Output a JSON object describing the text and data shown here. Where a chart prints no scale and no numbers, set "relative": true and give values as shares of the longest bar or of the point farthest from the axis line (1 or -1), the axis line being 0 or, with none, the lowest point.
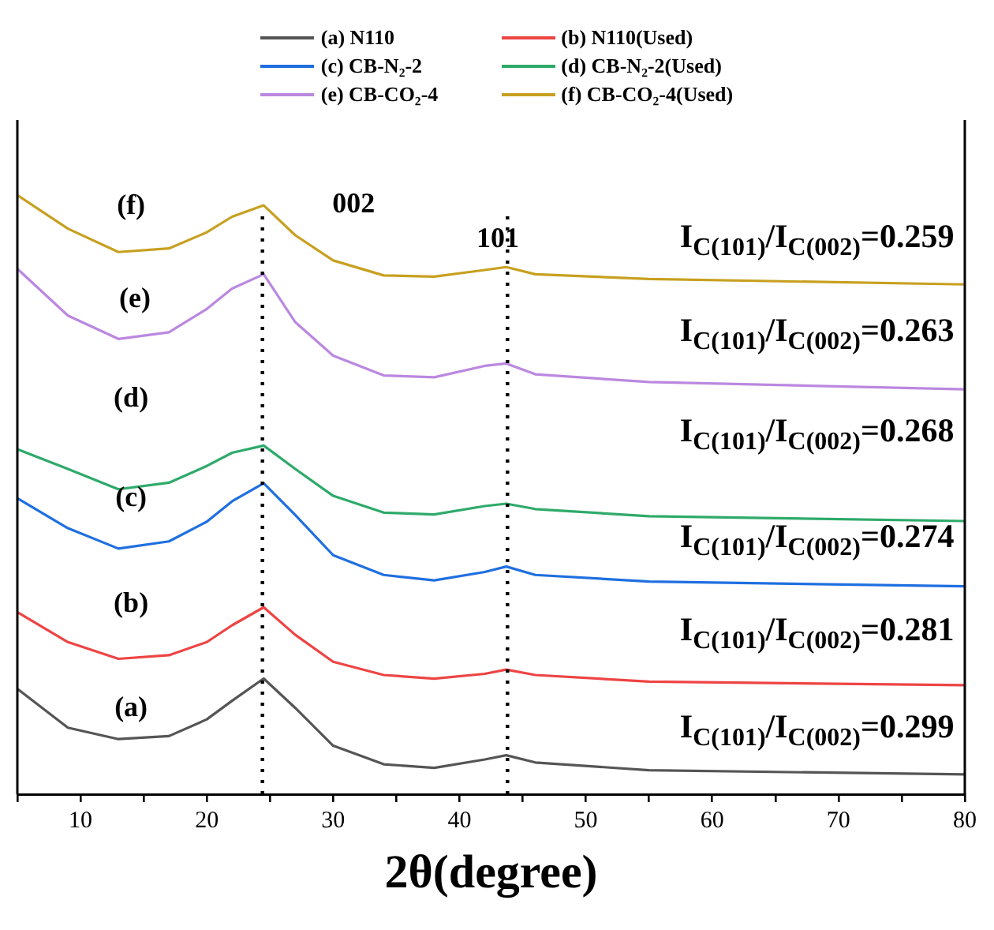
{
  "chart_data": {
    "type": "line",
    "relative": true,
    "xlabel": "2θ(degree)",
    "x": [
      5,
      9,
      13,
      17,
      20,
      22,
      24.5,
      27,
      30,
      34,
      38,
      42,
      43.7,
      46,
      55,
      80
    ],
    "xlim": [
      5,
      80
    ],
    "xticks": [
      {
        "value": 5,
        "label": null
      },
      10,
      {
        "value": 15,
        "label": null
      },
      20,
      {
        "value": 25,
        "label": null
      },
      30,
      {
        "value": 35,
        "label": null
      },
      40,
      {
        "value": 45,
        "label": null
      },
      50,
      {
        "value": 55,
        "label": null
      },
      60,
      {
        "value": 65,
        "label": null
      },
      70,
      {
        "value": 75,
        "label": null
      },
      80
    ],
    "series": [
      {
        "name": "(a) N110",
        "color": "#555555",
        "values": [
          0.176,
          0.111,
          0.092,
          0.097,
          0.125,
          0.156,
          0.193,
          0.144,
          0.081,
          0.05,
          0.044,
          0.058,
          0.065,
          0.053,
          0.04,
          0.033
        ]
      },
      {
        "name": "(b) N110(Used)",
        "color": "#ee4444",
        "values": [
          0.304,
          0.254,
          0.226,
          0.232,
          0.254,
          0.282,
          0.312,
          0.266,
          0.221,
          0.199,
          0.193,
          0.201,
          0.208,
          0.199,
          0.188,
          0.182
        ]
      },
      {
        "name": "(c) CB-N₂-2",
        "color": "#1f6fe0",
        "values": [
          0.494,
          0.444,
          0.41,
          0.422,
          0.455,
          0.489,
          0.519,
          0.466,
          0.399,
          0.366,
          0.357,
          0.371,
          0.38,
          0.366,
          0.355,
          0.347
        ]
      },
      {
        "name": "(d) CB-N₂-2(Used)",
        "color": "#2eaa6a",
        "values": [
          0.576,
          0.543,
          0.509,
          0.52,
          0.548,
          0.57,
          0.582,
          0.543,
          0.498,
          0.47,
          0.467,
          0.481,
          0.485,
          0.476,
          0.464,
          0.456
        ]
      },
      {
        "name": "(e) CB-CO₂-4",
        "color": "#bb88e0",
        "values": [
          0.877,
          0.799,
          0.76,
          0.771,
          0.81,
          0.844,
          0.868,
          0.788,
          0.732,
          0.699,
          0.696,
          0.715,
          0.719,
          0.701,
          0.688,
          0.676
        ]
      },
      {
        "name": "(f) CB-CO₂-4(Used)",
        "color": "#c8a020",
        "values": [
          1,
          0.944,
          0.905,
          0.911,
          0.938,
          0.964,
          0.983,
          0.933,
          0.891,
          0.866,
          0.864,
          0.875,
          0.88,
          0.868,
          0.86,
          0.851
        ]
      }
    ],
    "ref_lines": [
      {
        "axis": "x",
        "value": 24.4,
        "color": "#000000",
        "line_style": "dotted"
      },
      {
        "axis": "x",
        "value": 43.8,
        "color": "#000000",
        "line_style": "dotted"
      }
    ],
    "annotations": [
      "(f)",
      "(e)",
      "(d)",
      "(c)",
      "(b)",
      "(a)",
      "002",
      "101",
      "I$_{C(101)}$/I$_{C(002)}$=0.259",
      "I$_{C(101)}$/I$_{C(002)}$=0.263",
      "I$_{C(101)}$/I$_{C(002)}$=0.268",
      "I$_{C(101)}$/I$_{C(002)}$=0.274",
      "I$_{C(101)}$/I$_{C(002)}$=0.281",
      "I$_{C(101)}$/I$_{C(002)}$=0.299"
    ],
    "legend": "top",
    "grid": false,
    "marker": "none",
    "line_style": "solid"
  }
}
